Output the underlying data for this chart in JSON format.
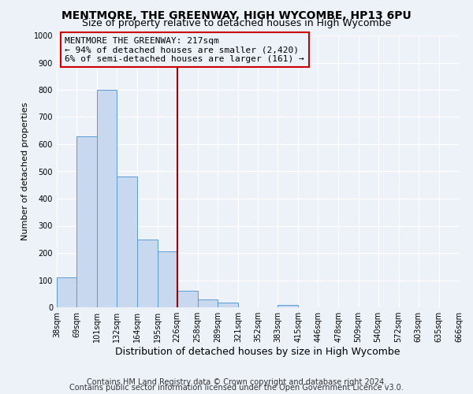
{
  "title": "MENTMORE, THE GREENWAY, HIGH WYCOMBE, HP13 6PU",
  "subtitle": "Size of property relative to detached houses in High Wycombe",
  "xlabel": "Distribution of detached houses by size in High Wycombe",
  "ylabel": "Number of detached properties",
  "bar_left_edges": [
    38,
    69,
    101,
    132,
    164,
    195,
    226,
    258,
    289,
    321,
    352,
    383,
    415,
    446,
    478,
    509,
    540,
    572,
    603,
    635
  ],
  "bar_widths": [
    31,
    32,
    31,
    32,
    31,
    31,
    32,
    31,
    32,
    31,
    31,
    32,
    31,
    32,
    31,
    31,
    32,
    31,
    32,
    31
  ],
  "bar_heights": [
    110,
    630,
    800,
    480,
    250,
    205,
    60,
    28,
    18,
    0,
    0,
    10,
    0,
    0,
    0,
    0,
    0,
    0,
    0,
    0
  ],
  "bar_color": "#c8d8ef",
  "bar_edge_color": "#5b9bd5",
  "tick_labels": [
    "38sqm",
    "69sqm",
    "101sqm",
    "132sqm",
    "164sqm",
    "195sqm",
    "226sqm",
    "258sqm",
    "289sqm",
    "321sqm",
    "352sqm",
    "383sqm",
    "415sqm",
    "446sqm",
    "478sqm",
    "509sqm",
    "540sqm",
    "572sqm",
    "603sqm",
    "635sqm",
    "666sqm"
  ],
  "tick_positions": [
    38,
    69,
    101,
    132,
    164,
    195,
    226,
    258,
    289,
    321,
    352,
    383,
    415,
    446,
    478,
    509,
    540,
    572,
    603,
    635,
    666
  ],
  "vline_x": 226,
  "vline_color": "#990000",
  "annotation_title": "MENTMORE THE GREENWAY: 217sqm",
  "annotation_line1": "← 94% of detached houses are smaller (2,420)",
  "annotation_line2": "6% of semi-detached houses are larger (161) →",
  "annotation_box_color": "#cc0000",
  "ylim": [
    0,
    1000
  ],
  "xlim": [
    38,
    666
  ],
  "yticks": [
    0,
    100,
    200,
    300,
    400,
    500,
    600,
    700,
    800,
    900,
    1000
  ],
  "footer1": "Contains HM Land Registry data © Crown copyright and database right 2024.",
  "footer2": "Contains public sector information licensed under the Open Government Licence v3.0.",
  "bg_color": "#edf1f8",
  "grid_color": "#ffffff",
  "title_fontsize": 10,
  "subtitle_fontsize": 9,
  "xlabel_fontsize": 9,
  "ylabel_fontsize": 8,
  "tick_fontsize": 7,
  "annotation_fontsize": 8,
  "footer_fontsize": 7
}
